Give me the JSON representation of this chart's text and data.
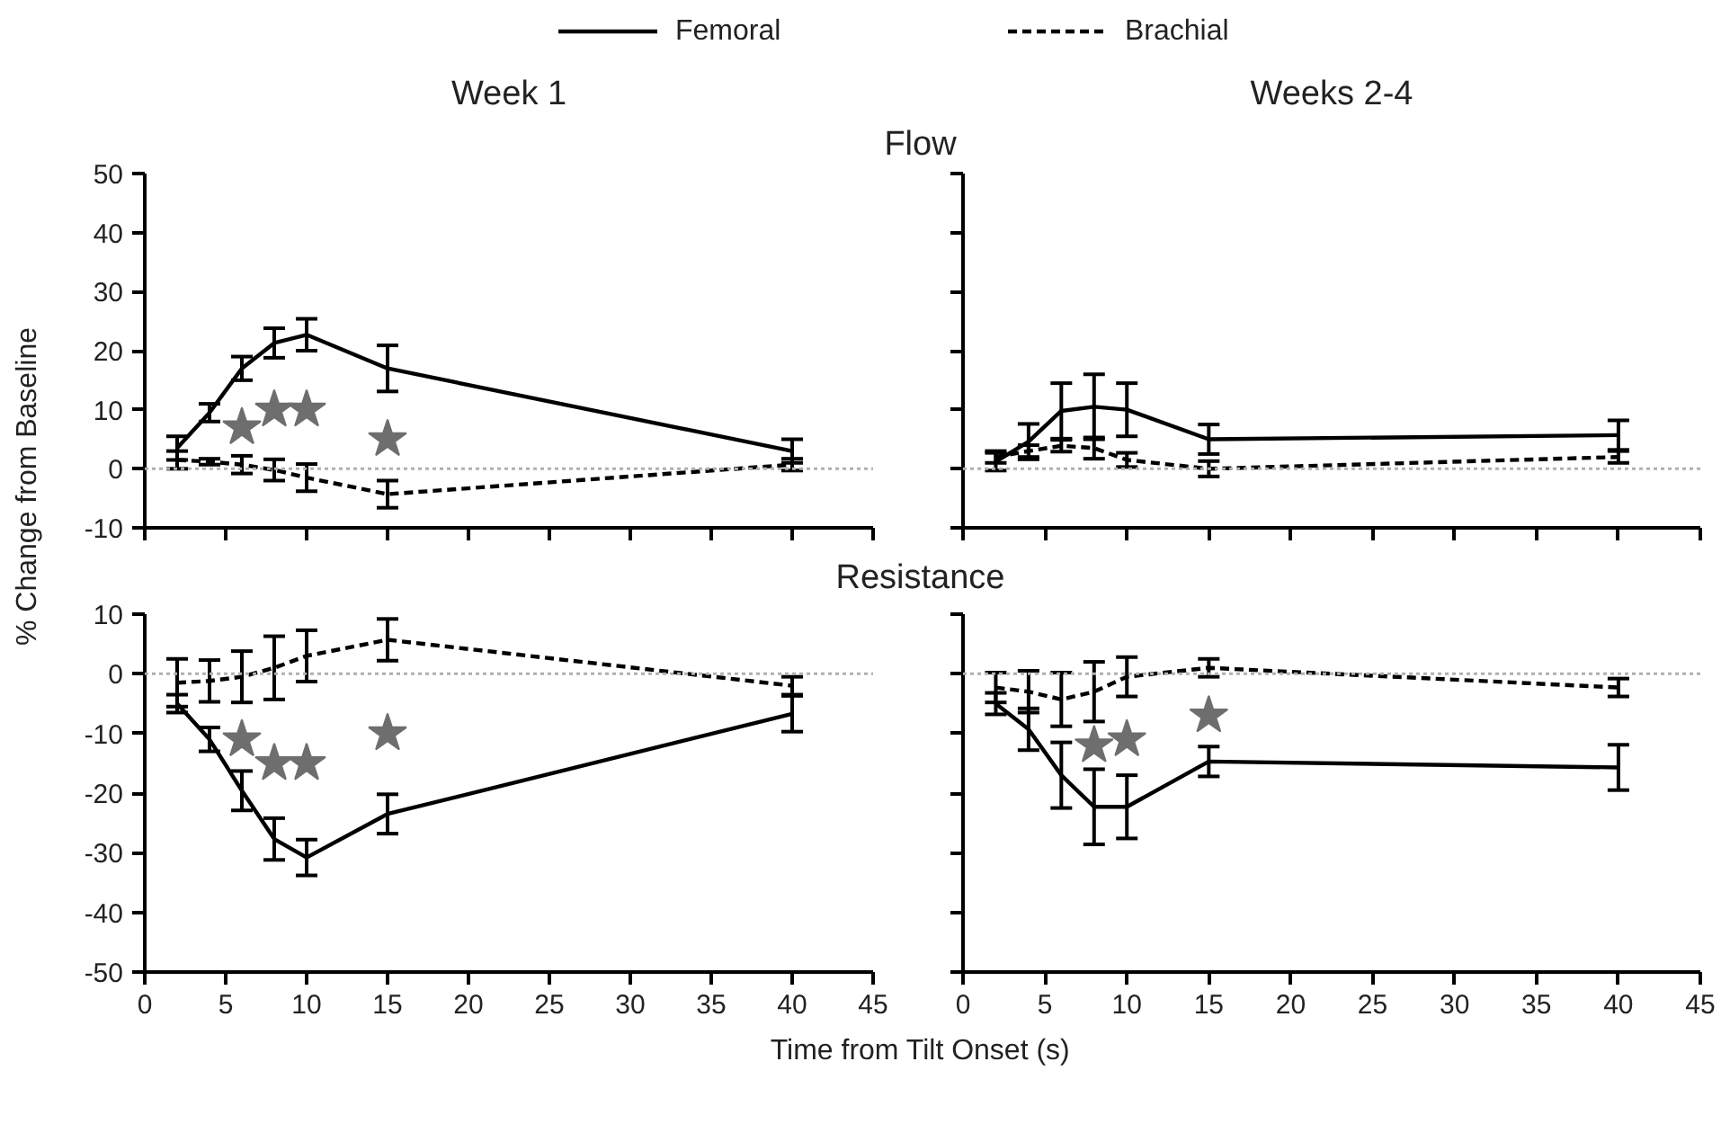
{
  "chart_data": [
    {
      "type": "line",
      "title": "Week 1",
      "subtitle": "Flow",
      "ylabel": "% Change from Baseline",
      "legend": "top",
      "grid": false,
      "tick_labels": "y",
      "xlim": [
        0,
        45
      ],
      "xticks": [
        0,
        5,
        10,
        15,
        20,
        25,
        30,
        35,
        40,
        45
      ],
      "ylim": [
        -10,
        50
      ],
      "yticks": [
        -10,
        0,
        10,
        20,
        30,
        40,
        50
      ],
      "ref_lines": [
        {
          "axis": "y",
          "value": 0,
          "color": "#b0b0b0",
          "line_style": "dotted"
        }
      ],
      "series": [
        {
          "name": "Femoral",
          "color": "#000000",
          "line_style": "solid",
          "x": [
            2,
            4,
            6,
            8,
            10,
            15,
            40
          ],
          "values": [
            3.5,
            9.5,
            17,
            21.3,
            22.7,
            17,
            3
          ],
          "errors": [
            2,
            1.5,
            2,
            2.5,
            2.7,
            3.9,
            2
          ]
        },
        {
          "name": "Brachial",
          "color": "#000000",
          "line_style": "dashed",
          "x": [
            2,
            4,
            6,
            8,
            10,
            15,
            40
          ],
          "values": [
            1.5,
            1.2,
            0.7,
            -0.2,
            -1.5,
            -4.3,
            0.7
          ],
          "errors": [
            1.5,
            0.5,
            1.5,
            1.8,
            2.3,
            2.3,
            1
          ]
        },
        {
          "type": "scatter",
          "marker": "star",
          "color": "#6e6e6e",
          "x": [
            6,
            8,
            10,
            15
          ],
          "values": [
            7,
            10,
            10,
            5
          ]
        }
      ]
    },
    {
      "type": "line",
      "title": "Weeks 2-4",
      "grid": false,
      "tick_labels": false,
      "xlim": [
        0,
        45
      ],
      "xticks": [
        0,
        5,
        10,
        15,
        20,
        25,
        30,
        35,
        40,
        45
      ],
      "ylim": [
        -10,
        50
      ],
      "yticks": [
        -10,
        0,
        10,
        20,
        30,
        40,
        50
      ],
      "ref_lines": [
        {
          "axis": "y",
          "value": 0,
          "color": "#b0b0b0",
          "line_style": "dotted"
        }
      ],
      "series": [
        {
          "color": "#000000",
          "line_style": "solid",
          "x": [
            2,
            4,
            6,
            8,
            10,
            15,
            40
          ],
          "values": [
            1.2,
            4.6,
            9.8,
            10.5,
            10,
            5,
            5.7
          ],
          "errors": [
            1.5,
            3,
            4.7,
            5.5,
            4.5,
            2.5,
            2.5
          ]
        },
        {
          "color": "#000000",
          "line_style": "dashed",
          "x": [
            2,
            4,
            6,
            8,
            10,
            15,
            40
          ],
          "values": [
            2,
            3,
            3.9,
            3.5,
            1.5,
            0,
            2
          ],
          "errors": [
            1,
            1,
            1,
            1.8,
            1.2,
            1.3,
            1
          ]
        }
      ]
    },
    {
      "type": "line",
      "subtitle": "Resistance",
      "xlabel": "Time from Tilt Onset (s)",
      "grid": false,
      "xlim": [
        0,
        45
      ],
      "xticks": [
        0,
        5,
        10,
        15,
        20,
        25,
        30,
        35,
        40,
        45
      ],
      "ylim": [
        -50,
        10
      ],
      "yticks": [
        -50,
        -40,
        -30,
        -20,
        -10,
        0,
        10
      ],
      "ref_lines": [
        {
          "axis": "y",
          "value": 0,
          "color": "#b0b0b0",
          "line_style": "dotted"
        }
      ],
      "series": [
        {
          "color": "#000000",
          "line_style": "solid",
          "x": [
            2,
            4,
            6,
            8,
            10,
            15,
            40
          ],
          "values": [
            -5,
            -11,
            -19.6,
            -27.7,
            -30.8,
            -23.5,
            -6.7
          ],
          "errors": [
            1.5,
            2,
            3.3,
            3.5,
            3,
            3.3,
            3
          ]
        },
        {
          "color": "#000000",
          "line_style": "dashed",
          "x": [
            2,
            4,
            6,
            8,
            10,
            15,
            40
          ],
          "values": [
            -1.5,
            -1.2,
            -0.5,
            1,
            3,
            5.7,
            -2
          ],
          "errors": [
            4,
            3.5,
            4.3,
            5.3,
            4.3,
            3.5,
            1.5
          ]
        },
        {
          "type": "scatter",
          "marker": "star",
          "color": "#6e6e6e",
          "x": [
            6,
            8,
            10,
            15
          ],
          "values": [
            -11,
            -15,
            -15,
            -10
          ]
        }
      ]
    },
    {
      "type": "line",
      "grid": false,
      "tick_labels": "x",
      "xlim": [
        0,
        45
      ],
      "xticks": [
        0,
        5,
        10,
        15,
        20,
        25,
        30,
        35,
        40,
        45
      ],
      "ylim": [
        -50,
        10
      ],
      "yticks": [
        -50,
        -40,
        -30,
        -20,
        -10,
        0,
        10
      ],
      "ref_lines": [
        {
          "axis": "y",
          "value": 0,
          "color": "#b0b0b0",
          "line_style": "dotted"
        }
      ],
      "series": [
        {
          "color": "#000000",
          "line_style": "solid",
          "x": [
            2,
            4,
            6,
            8,
            10,
            15,
            40
          ],
          "values": [
            -5,
            -9.3,
            -17,
            -22.3,
            -22.3,
            -14.7,
            -15.7
          ],
          "errors": [
            1.8,
            3.5,
            5.5,
            6.3,
            5.3,
            2.5,
            3.8
          ]
        },
        {
          "color": "#000000",
          "line_style": "dashed",
          "x": [
            2,
            4,
            6,
            8,
            10,
            15,
            40
          ],
          "values": [
            -2.3,
            -3,
            -4.3,
            -3,
            -0.5,
            1,
            -2.3
          ],
          "errors": [
            2.5,
            3.5,
            4.5,
            5,
            3.3,
            1.5,
            1.5
          ]
        },
        {
          "type": "scatter",
          "marker": "star",
          "color": "#6e6e6e",
          "x": [
            8,
            10,
            15
          ],
          "values": [
            -12,
            -11,
            -7
          ]
        }
      ]
    }
  ]
}
